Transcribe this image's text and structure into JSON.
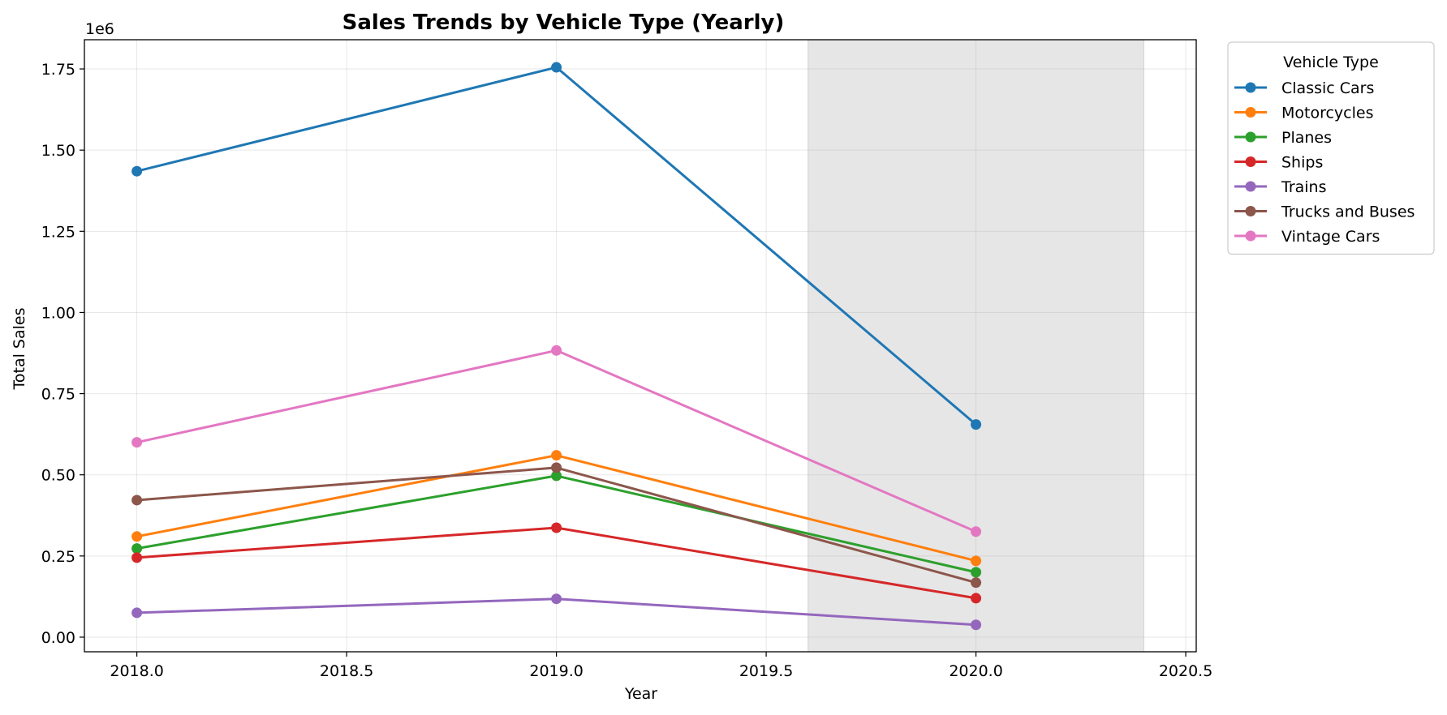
{
  "chart_data": {
    "type": "line",
    "title": "Sales Trends by Vehicle Type (Yearly)",
    "xlabel": "Year",
    "ylabel": "Total Sales",
    "y_offset_label": "1e6",
    "x": [
      2018,
      2019,
      2020
    ],
    "xlim": [
      2017.875,
      2020.525
    ],
    "ylim": [
      -0.045,
      1.84
    ],
    "xticks": [
      2018.0,
      2018.5,
      2019.0,
      2019.5,
      2020.0,
      2020.5
    ],
    "xtick_labels": [
      "2018.0",
      "2018.5",
      "2019.0",
      "2019.5",
      "2020.0",
      "2020.5"
    ],
    "yticks": [
      0.0,
      0.25,
      0.5,
      0.75,
      1.0,
      1.25,
      1.5,
      1.75
    ],
    "ytick_labels": [
      "0.00",
      "0.25",
      "0.50",
      "0.75",
      "1.00",
      "1.25",
      "1.50",
      "1.75"
    ],
    "y_unit_multiplier": 1000000,
    "shaded_region": {
      "x_start": 2019.6,
      "x_end": 2020.4,
      "color": "#e6e6e6"
    },
    "grid": true,
    "legend": {
      "title": "Vehicle Type",
      "placement": "outside-top-right"
    },
    "series": [
      {
        "name": "Classic Cars",
        "color": "#1f77b4",
        "values": [
          1.435,
          1.755,
          0.655
        ]
      },
      {
        "name": "Motorcycles",
        "color": "#ff7f0e",
        "values": [
          0.31,
          0.56,
          0.235
        ]
      },
      {
        "name": "Planes",
        "color": "#2ca02c",
        "values": [
          0.273,
          0.497,
          0.2
        ]
      },
      {
        "name": "Ships",
        "color": "#d62728",
        "values": [
          0.245,
          0.337,
          0.12
        ]
      },
      {
        "name": "Trains",
        "color": "#9467bd",
        "values": [
          0.075,
          0.118,
          0.038
        ]
      },
      {
        "name": "Trucks and Buses",
        "color": "#8c564b",
        "values": [
          0.422,
          0.522,
          0.168
        ]
      },
      {
        "name": "Vintage Cars",
        "color": "#e377c2",
        "values": [
          0.6,
          0.883,
          0.325
        ]
      }
    ]
  }
}
